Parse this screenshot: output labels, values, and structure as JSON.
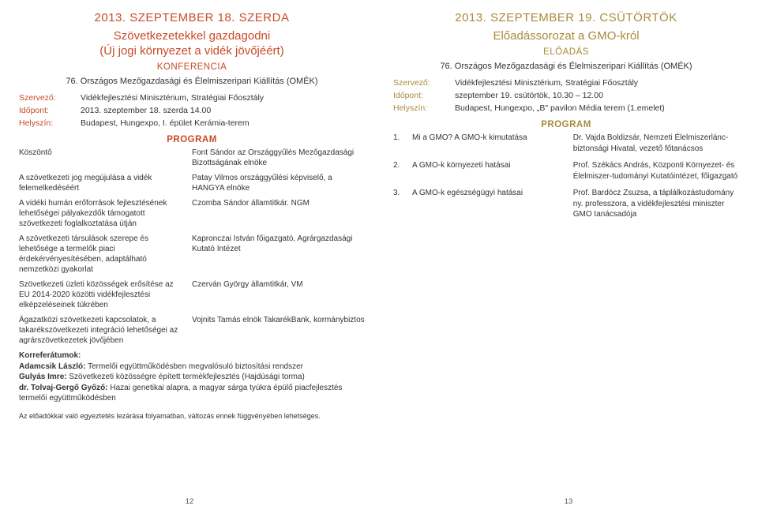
{
  "colors": {
    "leftAccent": "#c84b28",
    "rightAccent": "#a88a3a",
    "text": "#333333"
  },
  "left": {
    "date": "2013. SZEPTEMBER 18. SZERDA",
    "title1": "Szövetkezetekkel gazdagodni",
    "title2": "(Új jogi környezet a vidék jövőjéért)",
    "subtype": "KONFERENCIA",
    "venue": "76. Országos Mezőgazdasági és Élelmiszeripari Kiállítás (OMÉK)",
    "meta": {
      "organizerLabel": "Szervező:",
      "organizer": "Vidékfejlesztési Minisztérium, Stratégiai Főosztály",
      "timeLabel": "Időpont:",
      "time": "2013. szeptember 18. szerda 14.00",
      "placeLabel": "Helyszín:",
      "place": "Budapest, Hungexpo, I. épület Kerámia-terem"
    },
    "programHdr": "PROGRAM",
    "program": [
      {
        "l": "Köszöntő",
        "r": "Font Sándor az Országgyűlés Mezőgazdasági Bizottságának elnöke"
      },
      {
        "l": "A szövetkezeti jog megújulása a vidék felemelkedéséért",
        "r": "Patay Vilmos országgyűlési képviselő, a HANGYA elnöke"
      },
      {
        "l": "A vidéki humán erőforrások fejlesztésének lehetőségei pályakezdők támogatott szövetkezeti foglalkoztatása útján",
        "r": "Czomba Sándor államtitkár. NGM"
      },
      {
        "l": "A szövetkezeti társulások szerepe és lehetősége a termelők piaci érdekérvényesítésében, adaptálható nemzetközi gyakorlat",
        "r": "Kapronczai István főigazgató, Agrárgazdasági Kutató Intézet"
      },
      {
        "l": "Szövetkezeti üzleti közösségek erősítése az EU 2014-2020 közötti vidékfejlesztési elképzeléseinek tükrében",
        "r": "Czerván György államtitkár, VM"
      },
      {
        "l": "Ágazatközi szövetkezeti kapcsolatok, a takarékszövetkezeti integráció lehetőségei az agrárszövetkezetek jövőjében",
        "r": "Vojnits Tamás elnök TakarékBank, kormánybiztos"
      }
    ],
    "korrHdr": "Korreferátumok:",
    "korr": [
      {
        "name": "Adamcsik László:",
        "rest": " Termelői együttműködésben megvalósuló biztosítási rendszer"
      },
      {
        "name": "Gulyás Imre:",
        "rest": " Szövetkezeti közösségre épített termékfejlesztés (Hajdúsági torma)"
      },
      {
        "name": "dr. Tolvaj-Gergő Győző:",
        "rest": " Hazai genetikai alapra, a magyar sárga tyúkra épülő piacfejlesztés termelői együttműködésben"
      }
    ],
    "footnote": "Az előadókkal való egyeztetés lezárása folyamatban, változás ennek függvényében lehetséges.",
    "pageNum": "12"
  },
  "right": {
    "date": "2013. SZEPTEMBER 19. CSÜTÖRTÖK",
    "title": "Előadássorozat a GMO-król",
    "subtype": "ELŐADÁS",
    "venue": "76. Országos Mezőgazdasági és Élelmiszeripari Kiállítás (OMÉK)",
    "meta": {
      "organizerLabel": "Szervező:",
      "organizer": "Vidékfejlesztési Minisztérium, Stratégiai Főosztály",
      "timeLabel": "Időpont:",
      "time": "szeptember 19. csütörtök, 10.30 – 12.00",
      "placeLabel": "Helyszín:",
      "place": "Budapest, Hungexpo, „B\" pavilon Média terem (1.emelet)"
    },
    "programHdr": "PROGRAM",
    "program": [
      {
        "n": "1.",
        "t": "Mi a GMO? A GMO-k kimutatása",
        "s": "Dr. Vajda Boldizsár, Nemzeti Élelmiszerlánc-biztonsági Hivatal, vezető főtanácsos"
      },
      {
        "n": "2.",
        "t": "A GMO-k környezeti hatásai",
        "s": "Prof. Székács András, Központi Környezet- és Élelmiszer-tudományi Kutatóintézet, főigazgató"
      },
      {
        "n": "3.",
        "t": "A GMO-k egészségügyi hatásai",
        "s": "Prof. Bardócz Zsuzsa, a táplálkozástudomány ny. professzora, a vidékfejlesztési miniszter GMO tanácsadója"
      }
    ],
    "pageNum": "13"
  }
}
